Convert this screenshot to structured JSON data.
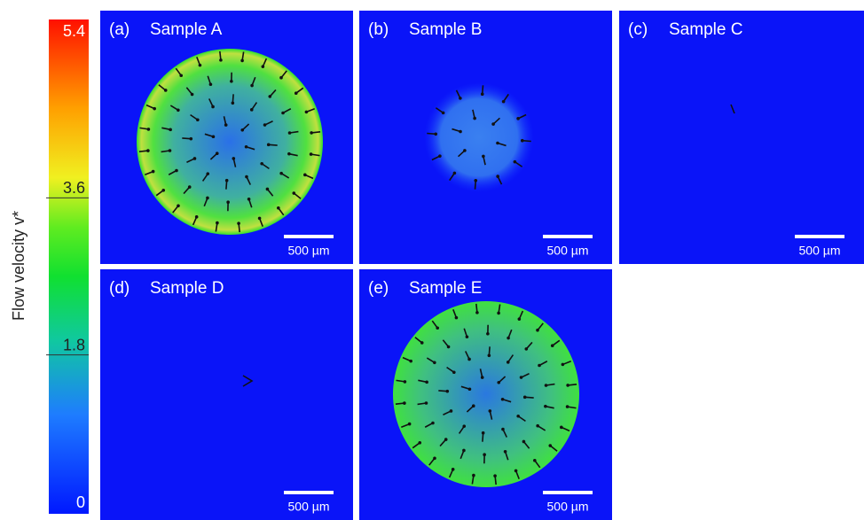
{
  "colorbar": {
    "label": "Flow velocity v*",
    "ticks": [
      0,
      1.8,
      3.6,
      5.4
    ]
  },
  "panels": [
    {
      "label": "(a)",
      "title": "Sample A",
      "scale_bar": "500 µm"
    },
    {
      "label": "(b)",
      "title": "Sample B",
      "scale_bar": "500 µm"
    },
    {
      "label": "(c)",
      "title": "Sample C",
      "scale_bar": "500 µm"
    },
    {
      "label": "(d)",
      "title": "Sample D",
      "scale_bar": "500 µm"
    },
    {
      "label": "(e)",
      "title": "Sample E",
      "scale_bar": "500 µm"
    }
  ]
}
